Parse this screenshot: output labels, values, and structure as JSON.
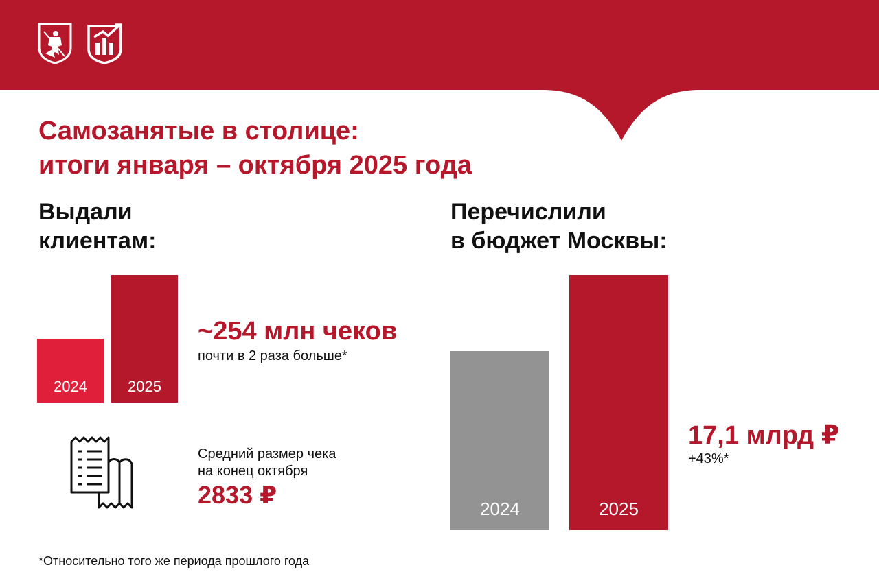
{
  "colors": {
    "brand_red": "#b5172b",
    "light_red": "#e0203a",
    "gray": "#939393",
    "text": "#111111"
  },
  "header": {
    "logos": [
      {
        "icon": "moscow-coat-of-arms-icon"
      },
      {
        "icon": "chart-growth-shield-icon"
      }
    ]
  },
  "title": {
    "line1": "Самозанятые в столице:",
    "line2": "итоги января – октября 2025 года"
  },
  "chart_data": [
    {
      "type": "bar",
      "title": "Выдали клиентам:",
      "title_lines": [
        "Выдали",
        "клиентам:"
      ],
      "categories": [
        "2024",
        "2025"
      ],
      "values": [
        127,
        254
      ],
      "unit": "млн чеков",
      "ylim": [
        0,
        254
      ],
      "colors": [
        "#e0203a",
        "#b5172b"
      ],
      "callout": {
        "value": "~254 млн чеков",
        "note": "почти в 2 раза больше*"
      }
    },
    {
      "type": "bar",
      "title": "Перечислили в бюджет Москвы:",
      "title_lines": [
        "Перечислили",
        "в бюджет Москвы:"
      ],
      "categories": [
        "2024",
        "2025"
      ],
      "values": [
        12.0,
        17.1
      ],
      "unit": "млрд ₽",
      "ylim": [
        0,
        17.1
      ],
      "colors": [
        "#939393",
        "#b5172b"
      ],
      "callout": {
        "value": "17,1 млрд ₽",
        "note": "+43%*"
      }
    }
  ],
  "average_check": {
    "icon": "receipt-icon",
    "label_line1": "Средний размер чека",
    "label_line2": "на конец октября",
    "value": "2833 ₽"
  },
  "footnote": "*Относительно того же периода прошлого года"
}
